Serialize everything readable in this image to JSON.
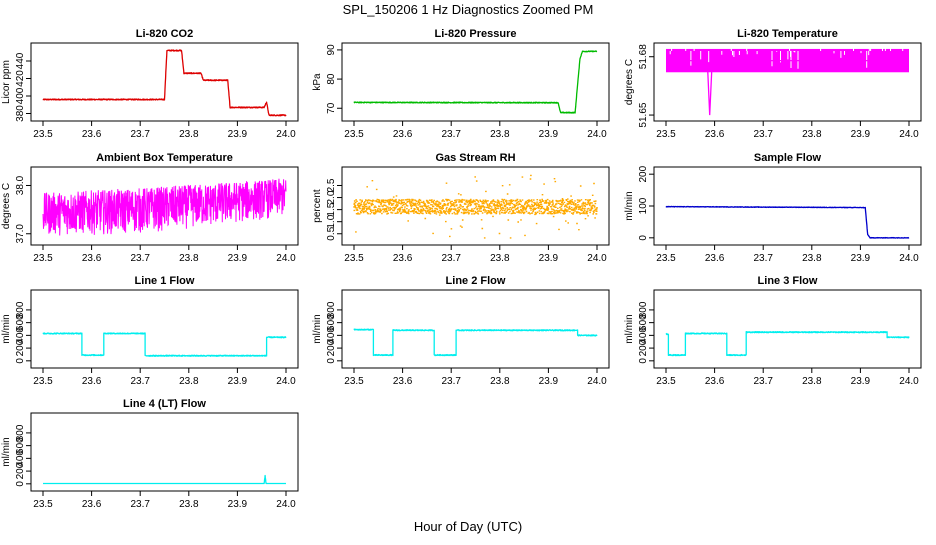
{
  "title": "SPL_150206  1 Hz Diagnostics Zoomed PM",
  "xlabel": "Hour of Day (UTC)",
  "chart_data": [
    {
      "type": "line",
      "title": "Li-820 CO2",
      "ylabel": "Licor ppm",
      "color": "#dd0000",
      "xlim": [
        23.5,
        24.0
      ],
      "xticks": [
        "23.5",
        "23.6",
        "23.7",
        "23.8",
        "23.9",
        "24.0"
      ],
      "ylim": [
        376,
        456
      ],
      "yticks": [
        "380",
        "400",
        "420",
        "440"
      ],
      "ytick_values": [
        380,
        400,
        420,
        440
      ],
      "noise": 0.6,
      "x": [
        23.5,
        23.75,
        23.755,
        23.785,
        23.79,
        23.825,
        23.83,
        23.88,
        23.885,
        23.955,
        23.96,
        23.965,
        23.97,
        24.0
      ],
      "y": [
        396,
        396,
        452,
        452,
        426,
        426,
        418,
        418,
        387,
        387,
        393,
        378,
        378,
        378
      ]
    },
    {
      "type": "line",
      "title": "Li-820 Pressure",
      "ylabel": "kPa",
      "color": "#00bb00",
      "xlim": [
        23.5,
        24.0
      ],
      "xticks": [
        "23.5",
        "23.6",
        "23.7",
        "23.8",
        "23.9",
        "24.0"
      ],
      "ylim": [
        67,
        91
      ],
      "yticks": [
        "70",
        "80",
        "90"
      ],
      "ytick_values": [
        70,
        80,
        90
      ],
      "noise": 0.15,
      "x": [
        23.5,
        23.92,
        23.925,
        23.955,
        23.96,
        23.965,
        23.97,
        24.0
      ],
      "y": [
        72,
        71.9,
        68.5,
        68.5,
        78,
        87,
        89.5,
        89.5
      ]
    },
    {
      "type": "line",
      "title": "Li-820 Temperature",
      "ylabel": "degrees C",
      "color": "#ff00ff",
      "xlim": [
        23.5,
        24.0
      ],
      "xticks": [
        "23.5",
        "23.6",
        "23.7",
        "23.8",
        "23.9",
        "24.0"
      ],
      "ylim": [
        51.649,
        51.685
      ],
      "yticks": [
        "51.65",
        "51.68"
      ],
      "ytick_values": [
        51.65,
        51.68
      ],
      "band": [
        51.672,
        51.684
      ],
      "noise": 0,
      "x": [
        23.5,
        23.585,
        23.59,
        23.595,
        24.0
      ],
      "y": [
        51.678,
        51.678,
        51.65,
        51.678,
        51.678
      ]
    },
    {
      "type": "line",
      "title": "Ambient Box Temperature",
      "ylabel": "degrees C",
      "color": "#ff00ff",
      "xlim": [
        23.5,
        24.0
      ],
      "xticks": [
        "23.5",
        "23.6",
        "23.7",
        "23.8",
        "23.9",
        "24.0"
      ],
      "ylim": [
        36.85,
        38.3
      ],
      "yticks": [
        "37.0",
        "38.0"
      ],
      "ytick_values": [
        37.0,
        38.0
      ],
      "envelope": {
        "x": [
          23.5,
          23.7,
          23.85,
          24.0
        ],
        "low": [
          36.95,
          37.0,
          37.15,
          37.35
        ],
        "high": [
          37.85,
          37.95,
          38.05,
          38.15
        ]
      }
    },
    {
      "type": "scatter",
      "title": "Gas Stream RH",
      "ylabel": "percent",
      "color": "#ffaa00",
      "xlim": [
        23.5,
        24.0
      ],
      "xticks": [
        "23.5",
        "23.6",
        "23.7",
        "23.8",
        "23.9",
        "24.0"
      ],
      "ylim": [
        0.2,
        3.1
      ],
      "yticks": [
        "0.5",
        "1.0",
        "1.5",
        "2.0",
        "2.5"
      ],
      "ytick_values": [
        0.5,
        1.0,
        1.5,
        2.0,
        2.5
      ],
      "center": 1.62,
      "spread": 0.3
    },
    {
      "type": "line",
      "title": "Sample Flow",
      "ylabel": "ml/min",
      "color": "#0000cc",
      "xlim": [
        23.5,
        24.0
      ],
      "xticks": [
        "23.5",
        "23.6",
        "23.7",
        "23.8",
        "23.9",
        "24.0"
      ],
      "ylim": [
        -10,
        210
      ],
      "yticks": [
        "0",
        "100",
        "200"
      ],
      "ytick_values": [
        0,
        100,
        200
      ],
      "noise": 0.8,
      "x": [
        23.5,
        23.91,
        23.915,
        23.92,
        24.0
      ],
      "y": [
        98,
        95,
        10,
        0,
        0
      ]
    },
    {
      "type": "line",
      "title": "Line 1 Flow",
      "ylabel": "ml/min",
      "color": "#00eeee",
      "xlim": [
        23.5,
        24.0
      ],
      "xticks": [
        "23.5",
        "23.6",
        "23.7",
        "23.8",
        "23.9",
        "24.0"
      ],
      "ylim": [
        -50,
        1050
      ],
      "yticks": [
        "0",
        "200",
        "400",
        "600",
        "800"
      ],
      "ytick_values": [
        0,
        200,
        400,
        600,
        800
      ],
      "noise": 8,
      "x": [
        23.5,
        23.58,
        23.58,
        23.625,
        23.625,
        23.71,
        23.71,
        23.96,
        23.96,
        24.0
      ],
      "y": [
        430,
        430,
        90,
        90,
        430,
        430,
        80,
        80,
        370,
        370
      ]
    },
    {
      "type": "line",
      "title": "Line 2 Flow",
      "ylabel": "ml/min",
      "color": "#00eeee",
      "xlim": [
        23.5,
        24.0
      ],
      "xticks": [
        "23.5",
        "23.6",
        "23.7",
        "23.8",
        "23.9",
        "24.0"
      ],
      "ylim": [
        -50,
        1050
      ],
      "yticks": [
        "0",
        "200",
        "400",
        "600",
        "800"
      ],
      "ytick_values": [
        0,
        200,
        400,
        600,
        800
      ],
      "noise": 8,
      "x": [
        23.5,
        23.54,
        23.54,
        23.58,
        23.58,
        23.665,
        23.665,
        23.71,
        23.71,
        23.96,
        23.96,
        24.0
      ],
      "y": [
        490,
        490,
        90,
        90,
        480,
        480,
        90,
        90,
        480,
        480,
        400,
        400
      ]
    },
    {
      "type": "line",
      "title": "Line 3 Flow",
      "ylabel": "ml/min",
      "color": "#00eeee",
      "xlim": [
        23.5,
        24.0
      ],
      "xticks": [
        "23.5",
        "23.6",
        "23.7",
        "23.8",
        "23.9",
        "24.0"
      ],
      "ylim": [
        -50,
        1050
      ],
      "yticks": [
        "0",
        "200",
        "400",
        "600",
        "800"
      ],
      "ytick_values": [
        0,
        200,
        400,
        600,
        800
      ],
      "noise": 8,
      "x": [
        23.5,
        23.505,
        23.505,
        23.54,
        23.54,
        23.625,
        23.625,
        23.665,
        23.665,
        23.955,
        23.955,
        24.0
      ],
      "y": [
        420,
        420,
        90,
        90,
        430,
        430,
        90,
        90,
        450,
        450,
        370,
        370
      ]
    },
    {
      "type": "line",
      "title": "Line 4 (LT) Flow",
      "ylabel": "ml/min",
      "color": "#00eeee",
      "xlim": [
        23.5,
        24.0
      ],
      "xticks": [
        "23.5",
        "23.6",
        "23.7",
        "23.8",
        "23.9",
        "24.0"
      ],
      "ylim": [
        -50,
        1050
      ],
      "yticks": [
        "0",
        "200",
        "400",
        "600",
        "800"
      ],
      "ytick_values": [
        0,
        200,
        400,
        600,
        800
      ],
      "noise": 0.5,
      "x": [
        23.5,
        23.955,
        23.957,
        23.959,
        24.0
      ],
      "y": [
        5,
        5,
        130,
        5,
        5
      ]
    }
  ]
}
